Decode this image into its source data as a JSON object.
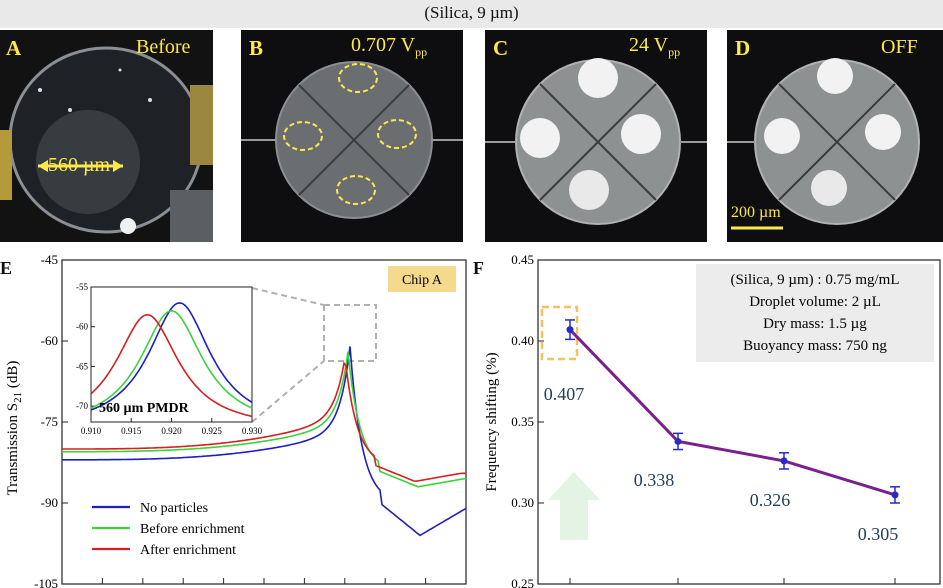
{
  "header": {
    "title": "(Silica, 9 µm)"
  },
  "photos": [
    {
      "label": "A",
      "note": "Before",
      "scale_text": "560 µm"
    },
    {
      "label": "B",
      "note_main": "0.707 V",
      "note_sub": "pp"
    },
    {
      "label": "C",
      "note_main": "24 V",
      "note_sub": "pp"
    },
    {
      "label": "D",
      "note": "OFF",
      "scale_text": "200 µm"
    }
  ],
  "panel_e": {
    "letter": "E",
    "ylabel_main": "Transmission S",
    "ylabel_sub": "21",
    "ylabel_unit": " (dB)",
    "chip_label": "Chip A",
    "inset_label": "560 µm PMDR",
    "legend": [
      "No particles",
      "Before enrichment",
      "After enrichment"
    ]
  },
  "panel_f": {
    "letter": "F",
    "ylabel": "Frequency shifting (%)",
    "info_lines": [
      "(Silica, 9 µm) : 0.75 mg/mL",
      "Droplet volume: 2 µL",
      "Dry mass: 1.5 µg",
      "Buoyancy mass: 750 ng"
    ]
  },
  "chart_data": [
    {
      "type": "line",
      "title": "",
      "ylabel": "Transmission S21 (dB)",
      "xlabel": "",
      "ylim": [
        -105,
        -45
      ],
      "yticks": [
        -45,
        -60,
        -75,
        -90,
        -105
      ],
      "series": [
        {
          "name": "No particles",
          "color": "#1f1fbf",
          "peak_db": -61
        },
        {
          "name": "Before enrichment",
          "color": "#3cd23c",
          "peak_db": -62
        },
        {
          "name": "After enrichment",
          "color": "#d42020",
          "peak_db": -63
        }
      ],
      "inset": {
        "xlim": [
          0.91,
          0.93
        ],
        "xticks": [
          "0.910",
          "0.915",
          "0.920",
          "0.925",
          "0.930"
        ],
        "ylim": [
          -72,
          -55
        ],
        "yticks": [
          "-55",
          "-60",
          "-65",
          "-70"
        ],
        "peaks": [
          {
            "name": "No particles",
            "x": 0.921,
            "y": -57
          },
          {
            "name": "Before enrichment",
            "x": 0.92,
            "y": -58
          },
          {
            "name": "After enrichment",
            "x": 0.917,
            "y": -58.5
          }
        ]
      }
    },
    {
      "type": "line",
      "title": "",
      "ylabel": "Frequency shifting (%)",
      "ylim": [
        0.25,
        0.45
      ],
      "yticks": [
        "0.25",
        "0.30",
        "0.35",
        "0.40",
        "0.45"
      ],
      "x": [
        1,
        2,
        3,
        4
      ],
      "values": [
        0.407,
        0.338,
        0.326,
        0.305
      ],
      "value_labels": [
        "0.407",
        "0.338",
        "0.326",
        "0.305"
      ],
      "error": [
        0.006,
        0.005,
        0.005,
        0.005
      ],
      "color": "#7a1f8e"
    }
  ]
}
